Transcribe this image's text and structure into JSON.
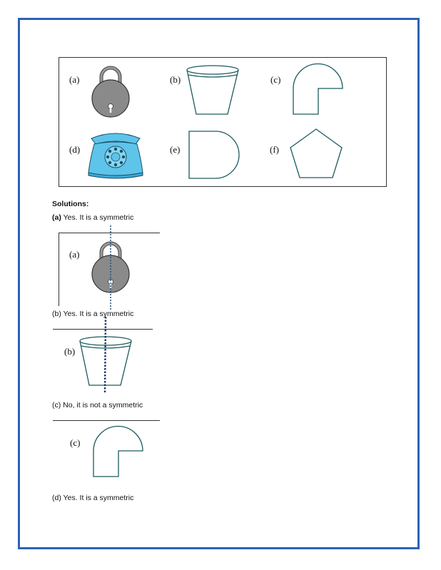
{
  "figure_labels": {
    "a": "(a)",
    "b": "(b)",
    "c": "(c)",
    "d": "(d)",
    "e": "(e)",
    "f": "(f)"
  },
  "figure_icons": {
    "a": "padlock",
    "b": "bucket",
    "c": "hook-shape",
    "d": "telephone",
    "e": "d-shape",
    "f": "pentagon"
  },
  "colors": {
    "frame": "#2d63b3",
    "shape_stroke": "#1d5a5e",
    "padlock_fill": "#8a8a8a",
    "phone_fill": "#5ec4ea",
    "axis_line": "#1e4f7a"
  },
  "solutions": {
    "heading": "Solutions:",
    "a_prefix": "(a)",
    "a_text": "Yes. It is a symmetric",
    "a_fig_label": "(a)",
    "b_text": "(b) Yes. It is a symmetric",
    "b_fig_label": "(b)",
    "c_text": "(c) No, it is not a symmetric",
    "c_fig_label": "(c)",
    "d_text": "(d) Yes. It is a symmetric"
  }
}
